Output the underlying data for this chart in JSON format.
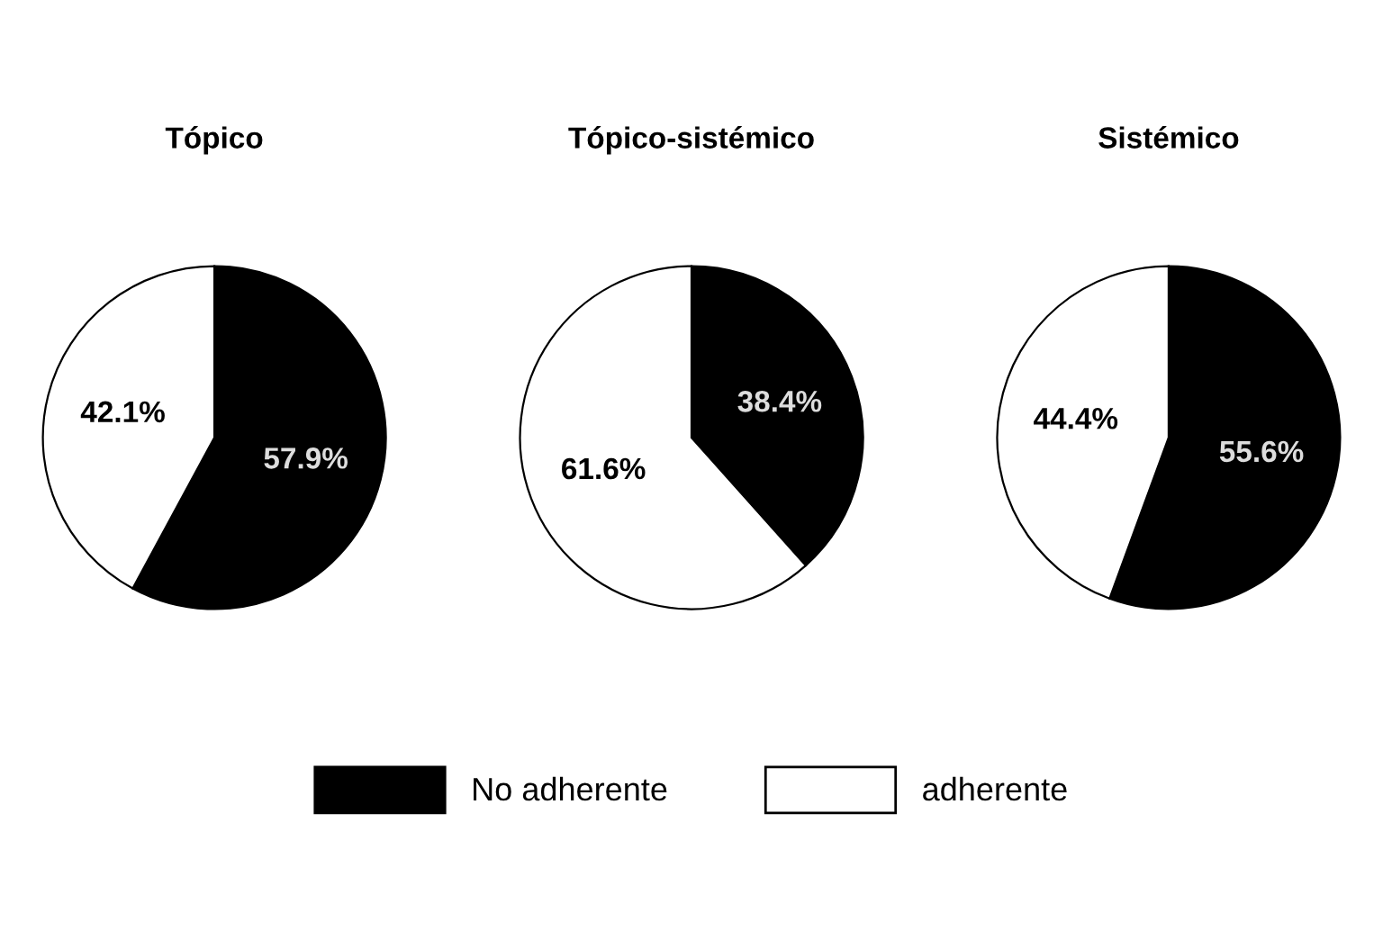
{
  "chart_data": [
    {
      "type": "pie",
      "title": "Tópico",
      "categories": [
        null,
        null
      ],
      "values": [
        57.9,
        42.1
      ],
      "value_labels": [
        "57.9%",
        "42.1%"
      ],
      "colors": [
        "#000000",
        "#ffffff"
      ]
    },
    {
      "type": "pie",
      "title": "Tópico-sistémico",
      "categories": [
        "No adherente",
        "adherente"
      ],
      "values": [
        38.4,
        61.6
      ],
      "value_labels": [
        "38.4%",
        "61.6%"
      ],
      "colors": [
        "#000000",
        "#ffffff"
      ],
      "legend": "bottom"
    },
    {
      "type": "pie",
      "title": "Sistémico",
      "categories": [
        null,
        null
      ],
      "values": [
        55.6,
        44.4
      ],
      "value_labels": [
        "55.6%",
        "44.4%"
      ],
      "colors": [
        "#000000",
        "#ffffff"
      ]
    }
  ]
}
